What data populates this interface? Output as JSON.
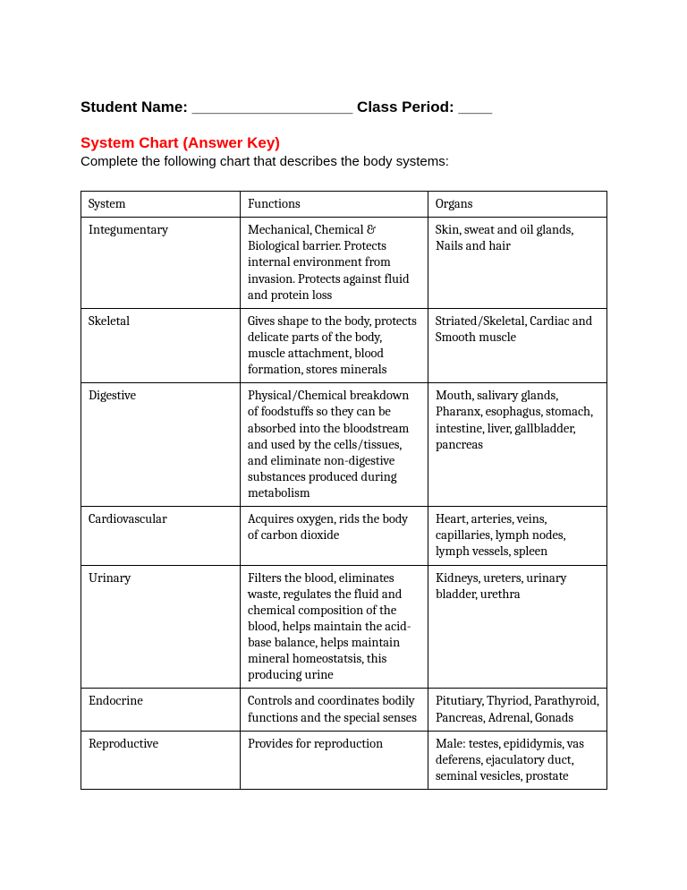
{
  "header": {
    "student_name_label": "Student Name: ___________________",
    "class_period_label": " Class Period: ____"
  },
  "title": "System Chart (Answer Key)",
  "instruction": "Complete the following chart that describes the body systems:",
  "table": {
    "columns": [
      "System",
      "Functions",
      "Organs"
    ],
    "rows": [
      {
        "system": "Integumentary",
        "functions": "Mechanical, Chemical & Biological barrier. Protects internal environment from invasion. Protects against fluid and protein loss",
        "organs": "Skin, sweat and oil glands, Nails and hair"
      },
      {
        "system": "Skeletal",
        "functions": "Gives shape to the body, protects delicate parts of the body, muscle attachment, blood formation, stores minerals",
        "organs": "Striated/Skeletal, Cardiac and Smooth muscle"
      },
      {
        "system": "Digestive",
        "functions": "Physical/Chemical breakdown of foodstuffs so they can be absorbed into the bloodstream and used by the cells/tissues, and eliminate non-digestive substances produced during metabolism",
        "organs": "Mouth, salivary glands, Pharanx, esophagus, stomach, intestine, liver, gallbladder, pancreas"
      },
      {
        "system": "Cardiovascular",
        "functions": "Acquires oxygen, rids the body of carbon dioxide",
        "organs": "Heart, arteries, veins, capillaries, lymph nodes, lymph vessels, spleen"
      },
      {
        "system": "Urinary",
        "functions": "Filters the blood, eliminates waste, regulates the fluid and chemical composition of the blood, helps maintain the acid-base balance, helps maintain mineral homeostatsis, this producing urine",
        "organs": "Kidneys, ureters, urinary bladder, urethra"
      },
      {
        "system": "Endocrine",
        "functions": "Controls and coordinates bodily functions and the special senses",
        "organs": "Pitutiary, Thyriod, Parathyroid, Pancreas, Adrenal, Gonads"
      },
      {
        "system": "Reproductive",
        "functions": "Provides for reproduction",
        "organs": "Male: testes, epididymis, vas deferens, ejaculatory duct, seminal vesicles, prostate"
      }
    ]
  },
  "colors": {
    "title": "#ff0000",
    "text": "#000000",
    "background": "#ffffff",
    "border": "#000000"
  }
}
